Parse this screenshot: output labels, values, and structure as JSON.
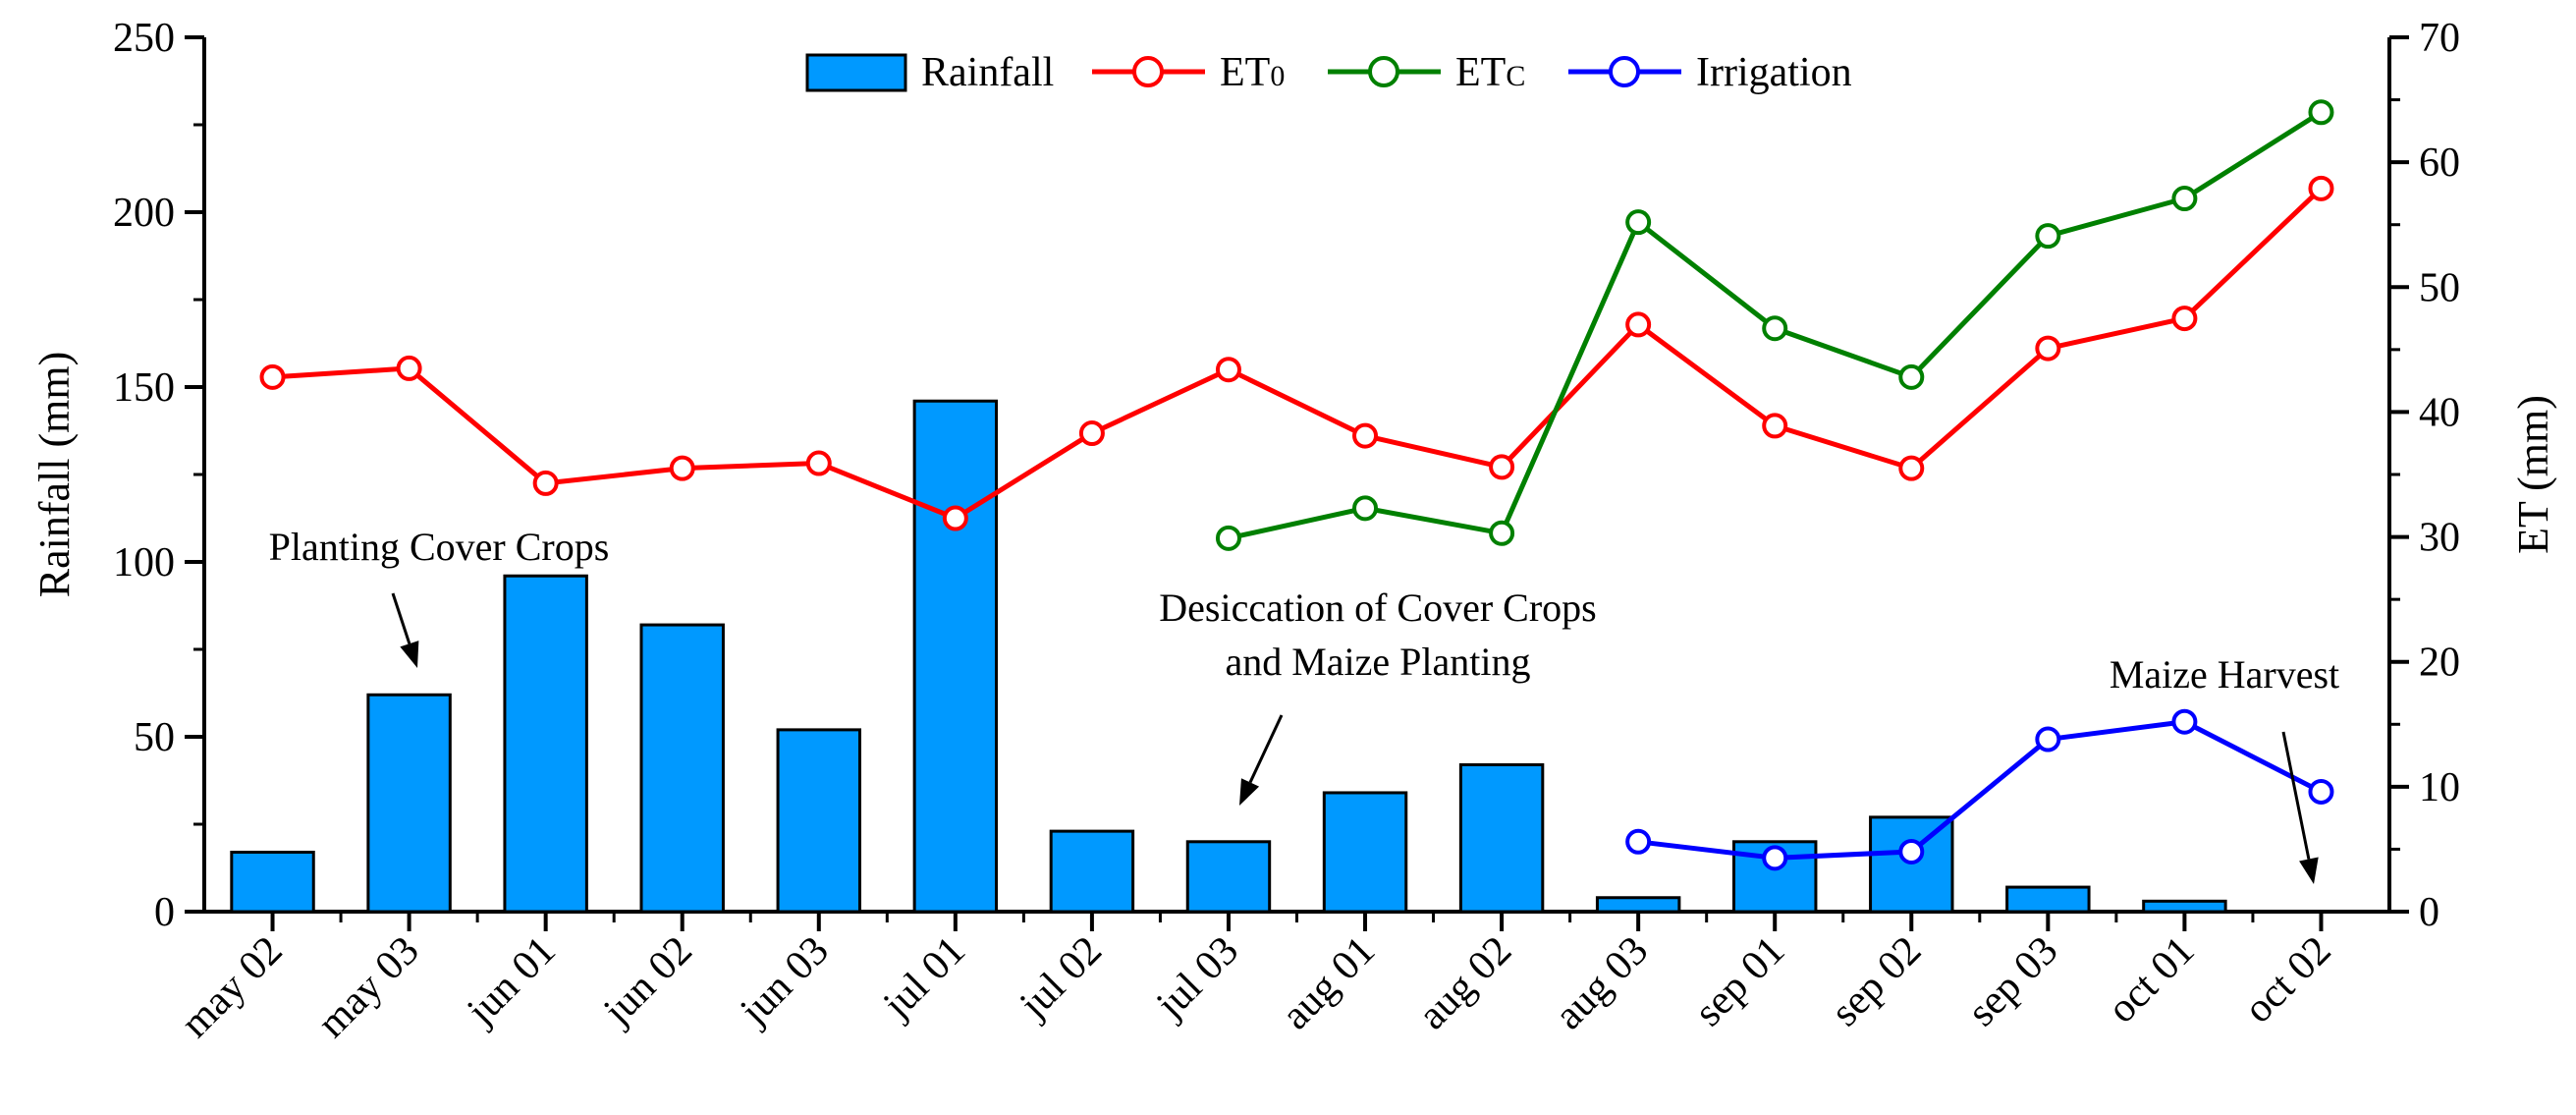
{
  "chart_data": {
    "type": "bar",
    "categories": [
      "may 02",
      "may 03",
      "jun 01",
      "jun 02",
      "jun 03",
      "jul 01",
      "jul 02",
      "jul 03",
      "aug 01",
      "aug 02",
      "aug 03",
      "sep 01",
      "sep 02",
      "sep 03",
      "oct 01",
      "oct 02"
    ],
    "left_axis": {
      "label": "Rainfall (mm)",
      "ylim": [
        0,
        250
      ],
      "ticks": [
        0,
        50,
        100,
        150,
        200,
        250
      ]
    },
    "right_axis": {
      "label": "ET (mm)",
      "ylim": [
        0,
        70
      ],
      "ticks": [
        0,
        10,
        20,
        30,
        40,
        50,
        60,
        70
      ]
    },
    "series": [
      {
        "name": "Rainfall",
        "kind": "bar",
        "axis": "left",
        "color": "#0099ff",
        "values": [
          17,
          62,
          96,
          82,
          52,
          146,
          23,
          20,
          34,
          42,
          4,
          20,
          27,
          7,
          3,
          null
        ]
      },
      {
        "name": "ET",
        "sub": "0",
        "kind": "line",
        "axis": "right",
        "color": "#ff0000",
        "values": [
          42.8,
          43.5,
          34.3,
          35.5,
          35.9,
          31.5,
          38.3,
          43.4,
          38.1,
          35.6,
          47.0,
          38.9,
          35.5,
          45.1,
          47.5,
          57.9
        ]
      },
      {
        "name": "ET",
        "sub": "C",
        "kind": "line",
        "axis": "right",
        "color": "#008000",
        "values": [
          null,
          null,
          null,
          null,
          null,
          null,
          null,
          29.9,
          32.3,
          30.3,
          55.2,
          46.7,
          42.8,
          54.1,
          57.1,
          64.0
        ]
      },
      {
        "name": "Irrigation",
        "kind": "line",
        "axis": "right",
        "color": "#0000ff",
        "values": [
          null,
          null,
          null,
          null,
          null,
          null,
          null,
          null,
          null,
          null,
          5.6,
          4.3,
          4.8,
          13.8,
          15.2,
          9.6
        ]
      }
    ],
    "annotations": [
      {
        "lines": [
          "Planting Cover Crops"
        ],
        "category": "may 03"
      },
      {
        "lines": [
          "Desiccation of Cover Crops",
          "and Maize Planting"
        ],
        "category": "jul 03"
      },
      {
        "lines": [
          "Maize Harvest"
        ],
        "category": "oct 02"
      }
    ],
    "legend_position": "top-center",
    "grid": false
  }
}
